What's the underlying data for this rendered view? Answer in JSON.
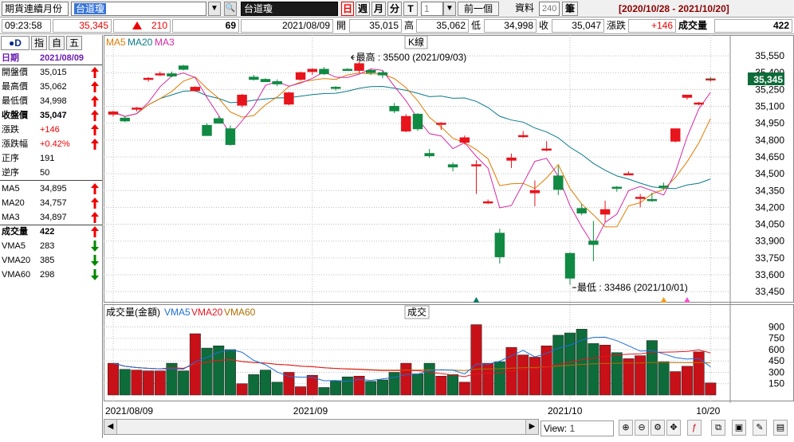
{
  "toolbar": {
    "product_type": "期貨連續月份",
    "symbol_code": "台道瓊",
    "symbol_name": "台道瓊",
    "period_day": "日",
    "period_week": "週",
    "period_month": "月",
    "period_min": "分",
    "period_tick": "T",
    "interval": "1",
    "prev_label": "前一個",
    "data_label": "資料",
    "data_count": "240",
    "count_unit": "筆",
    "date_range": "[2020/10/28 - 2021/10/20]"
  },
  "info": {
    "time": "09:23:58",
    "price": "35,345",
    "change": "210",
    "volume": "69",
    "date": "2021/08/09",
    "open_label": "開",
    "open": "35,015",
    "high_label": "高",
    "high": "35,062",
    "low_label": "低",
    "low": "34,998",
    "close_label": "收",
    "close": "35,047",
    "chg_label": "漲跌",
    "chg": "+146",
    "vol_label": "成交量",
    "vol": "422"
  },
  "left": {
    "tabs": [
      "●D",
      "指",
      "自",
      "五"
    ],
    "header_key": "日期",
    "header_value": "2021/08/09",
    "rows": [
      {
        "k": "開盤價",
        "v": "35,015",
        "arrow": "up"
      },
      {
        "k": "最高價",
        "v": "35,062",
        "arrow": "up"
      },
      {
        "k": "最低價",
        "v": "34,998",
        "arrow": "up"
      },
      {
        "k": "收盤價",
        "v": "35,047",
        "arrow": "up"
      },
      {
        "k": "漲跌",
        "v": "+146",
        "arrow": "up"
      },
      {
        "k": "漲跌幅",
        "v": "+0.42%",
        "arrow": "up"
      },
      {
        "k": "正序",
        "v": "191",
        "arrow": ""
      },
      {
        "k": "逆序",
        "v": "50",
        "arrow": ""
      },
      {
        "k": "MA5",
        "v": "34,895",
        "arrow": "up"
      },
      {
        "k": "MA20",
        "v": "34,757",
        "arrow": "up"
      },
      {
        "k": "MA3",
        "v": "34,897",
        "arrow": "up"
      },
      {
        "k": "成交量",
        "v": "422",
        "arrow": "up"
      },
      {
        "k": "VMA5",
        "v": "283",
        "arrow": "down"
      },
      {
        "k": "VMA20",
        "v": "385",
        "arrow": "down"
      },
      {
        "k": "VMA60",
        "v": "298",
        "arrow": "down"
      }
    ]
  },
  "chart": {
    "legend": {
      "ma5": "MA5",
      "ma20": "MA20",
      "ma3": "MA3"
    },
    "panel_label": "K線",
    "max_label": "最高 : 35500 (2021/09/03)",
    "min_label": "最低 : 33486 (2021/10/01)",
    "current_price": "35,345",
    "vol_title": "成交量(金額)",
    "vol_legend": {
      "vma5": "VMA5",
      "vma20": "VMA20",
      "vma60": "VMA60"
    },
    "vol_panel_label": "成交",
    "x_labels": [
      "2021/08/09",
      "2021/09",
      "2021/10",
      "10/20"
    ],
    "colors": {
      "up": "#e8141c",
      "down": "#108a43",
      "ma5": "#e07b00",
      "ma20": "#0a7a8a",
      "ma3": "#d62aa5",
      "vma5": "#1e6fd9",
      "vma20": "#e8141c",
      "vma60": "#b06f00"
    }
  },
  "chart_data": {
    "type": "candlestick",
    "price_axis": {
      "ticks": [
        33450,
        33600,
        33750,
        33900,
        34050,
        34200,
        34350,
        34500,
        34650,
        34800,
        34950,
        35100,
        35250,
        35400,
        35550
      ],
      "ylim": [
        33380,
        35650
      ]
    },
    "volume_axis": {
      "ticks": [
        150,
        300,
        450,
        600,
        750,
        900
      ],
      "ylim": [
        0,
        1010
      ]
    },
    "candles": [
      [
        35030,
        35060,
        35010,
        35050,
        420
      ],
      [
        34995,
        35010,
        34960,
        34970,
        340
      ],
      [
        35075,
        35095,
        35055,
        35085,
        330
      ],
      [
        35340,
        35360,
        35320,
        35350,
        320
      ],
      [
        35390,
        35410,
        35370,
        35390,
        320
      ],
      [
        35390,
        35410,
        35360,
        35370,
        420
      ],
      [
        35460,
        35470,
        35420,
        35430,
        320
      ],
      [
        35240,
        35280,
        35230,
        35270,
        810
      ],
      [
        34930,
        34950,
        34840,
        34840,
        620
      ],
      [
        34990,
        35010,
        34950,
        34950,
        650
      ],
      [
        34900,
        34930,
        34750,
        34760,
        600
      ],
      [
        35110,
        35210,
        35090,
        35200,
        150
      ],
      [
        35360,
        35380,
        35330,
        35340,
        270
      ],
      [
        35340,
        35350,
        35320,
        35320,
        330
      ],
      [
        35320,
        35340,
        35280,
        35300,
        170
      ],
      [
        35120,
        35230,
        35110,
        35220,
        300
      ],
      [
        35340,
        35410,
        35330,
        35400,
        110
      ],
      [
        35410,
        35440,
        35380,
        35430,
        260
      ],
      [
        35430,
        35450,
        35380,
        35390,
        100
      ],
      [
        35270,
        35280,
        35240,
        35260,
        190
      ],
      [
        35430,
        35440,
        35420,
        35420,
        240
      ],
      [
        35420,
        35500,
        35400,
        35480,
        250
      ],
      [
        35420,
        35430,
        35380,
        35400,
        180
      ],
      [
        35400,
        35420,
        35350,
        35380,
        200
      ],
      [
        35100,
        35130,
        35040,
        35060,
        300
      ],
      [
        34880,
        35030,
        34870,
        35010,
        420
      ],
      [
        35030,
        35040,
        34880,
        34900,
        280
      ],
      [
        34680,
        34720,
        34640,
        34660,
        420
      ],
      [
        34940,
        34960,
        34890,
        34950,
        250
      ],
      [
        34580,
        34600,
        34520,
        34560,
        270
      ],
      [
        34780,
        34840,
        34760,
        34820,
        170
      ],
      [
        34580,
        34620,
        34320,
        34580,
        930
      ],
      [
        34250,
        34270,
        34230,
        34250,
        420
      ],
      [
        33970,
        34010,
        33700,
        33760,
        440
      ],
      [
        34620,
        34680,
        34550,
        34640,
        630
      ],
      [
        34840,
        34880,
        34820,
        34840,
        530
      ],
      [
        34330,
        34440,
        34210,
        34350,
        500
      ],
      [
        34720,
        34790,
        34700,
        34720,
        650
      ],
      [
        34480,
        34570,
        34310,
        34360,
        790
      ],
      [
        33790,
        33800,
        33510,
        33570,
        820
      ],
      [
        34190,
        34230,
        34130,
        34150,
        870
      ],
      [
        33900,
        34080,
        33720,
        33870,
        680
      ],
      [
        34140,
        34260,
        34070,
        34180,
        660
      ],
      [
        34380,
        34390,
        34340,
        34370,
        560
      ],
      [
        34500,
        34520,
        34490,
        34500,
        480
      ],
      [
        34280,
        34320,
        34200,
        34290,
        520
      ],
      [
        34270,
        34330,
        34250,
        34260,
        720
      ],
      [
        34390,
        34420,
        34360,
        34380,
        440
      ],
      [
        34790,
        34900,
        34780,
        34900,
        310
      ],
      [
        35180,
        35200,
        35160,
        35200,
        380
      ],
      [
        35120,
        35140,
        35110,
        35130,
        570
      ],
      [
        35345,
        35360,
        35320,
        35345,
        160
      ],
      [
        35345,
        35360,
        35320,
        35345,
        69
      ]
    ]
  }
}
